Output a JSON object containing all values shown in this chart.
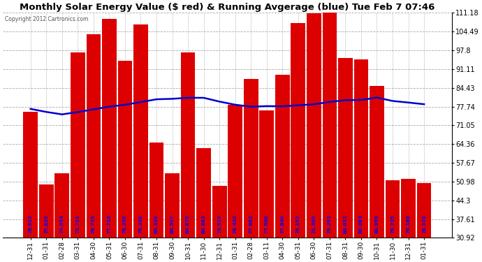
{
  "title": "Monthly Solar Energy Value ($ red) & Running Avgerage (blue) Tue Feb 7 07:46",
  "copyright": "Copyright 2012 Cartronics.com",
  "bar_color": "#dd0000",
  "line_color": "#0000cc",
  "background_color": "#ffffff",
  "plot_bg_color": "#ffffff",
  "grid_color": "#aaaaaa",
  "x_labels": [
    "12-31",
    "01-31",
    "02-28",
    "03-31",
    "04-30",
    "05-31",
    "06-30",
    "07-31",
    "08-31",
    "09-30",
    "10-31",
    "11-30",
    "12-31",
    "01-31",
    "02-28",
    "03-11",
    "04-30",
    "05-31",
    "06-30",
    "07-31",
    "08-31",
    "09-30",
    "10-31",
    "11-30",
    "12-31",
    "01-31"
  ],
  "bar_heights": [
    76.0,
    50.0,
    54.0,
    97.0,
    103.5,
    109.0,
    94.0,
    107.0,
    65.0,
    54.0,
    97.0,
    63.0,
    49.5,
    78.41,
    87.5,
    76.5,
    89.0,
    107.5,
    111.0,
    111.5,
    95.0,
    94.5,
    85.0,
    51.5,
    52.0,
    50.5
  ],
  "bar_labels": [
    "76.915",
    "75.829",
    "74.954",
    "75.791",
    "76.729",
    "77.718",
    "78.399",
    "79.336",
    "80.336",
    "80.507",
    "80.878",
    "80.863",
    "79.519",
    "78.410",
    "77.682",
    "77.908",
    "77.846",
    "78.192",
    "78.569",
    "79.391",
    "80.031",
    "80.083",
    "80.959",
    "79.735",
    "79.180",
    "78.578"
  ],
  "avg_values": [
    76.915,
    75.829,
    74.954,
    75.791,
    76.729,
    77.718,
    78.399,
    79.336,
    80.336,
    80.507,
    80.878,
    80.863,
    79.519,
    78.41,
    77.682,
    77.908,
    77.846,
    78.192,
    78.569,
    79.391,
    80.031,
    80.083,
    80.959,
    79.735,
    79.18,
    78.578
  ],
  "yticks": [
    30.92,
    37.61,
    44.3,
    50.98,
    57.67,
    64.36,
    71.05,
    77.74,
    84.43,
    91.11,
    97.8,
    104.49,
    111.18
  ],
  "ylim": [
    30.92,
    111.18
  ],
  "title_fontsize": 9.5,
  "text_color": "#000000",
  "label_color": "#0000ff",
  "copyright_color": "#555555"
}
